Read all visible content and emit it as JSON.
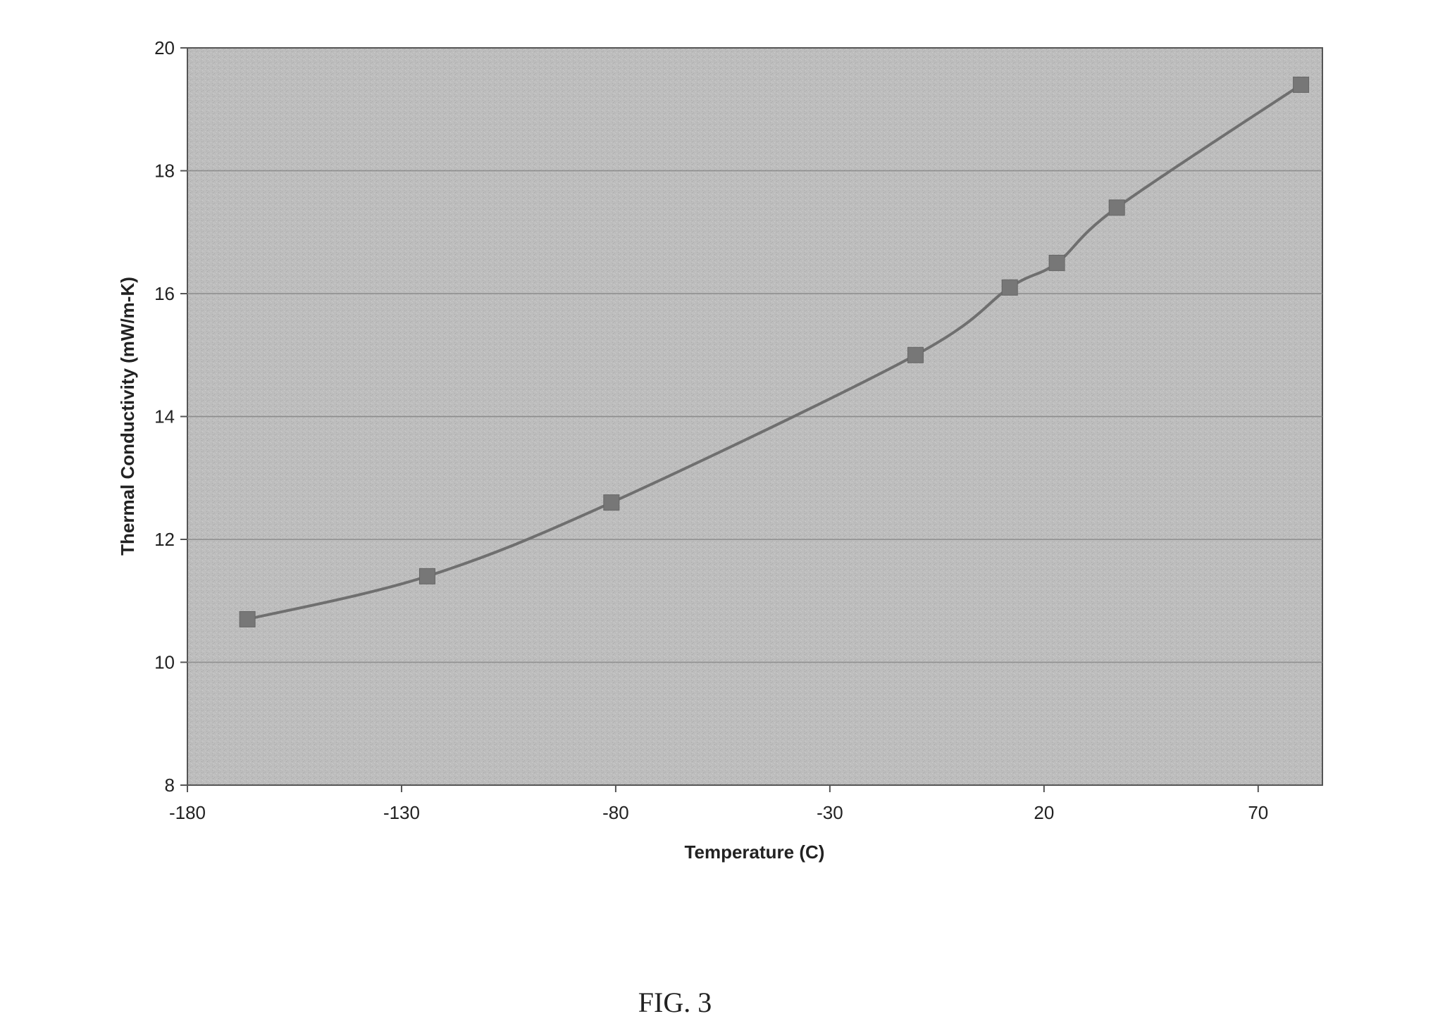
{
  "chart_data": {
    "type": "line",
    "title": "",
    "xlabel": "Temperature (C)",
    "ylabel": "Thermal Conductivity (mW/m-K)",
    "xlim": [
      -180,
      85
    ],
    "ylim": [
      8,
      20
    ],
    "x_ticks": [
      -180,
      -130,
      -80,
      -30,
      20,
      70
    ],
    "y_ticks": [
      8,
      10,
      12,
      14,
      16,
      18,
      20
    ],
    "grid": "horizontal",
    "legend": "none",
    "series": [
      {
        "x": [
          -166,
          -124,
          -81,
          -10,
          12,
          23,
          37,
          80
        ],
        "y": [
          10.7,
          11.4,
          12.6,
          15.0,
          16.1,
          16.5,
          17.4,
          19.4
        ]
      }
    ]
  },
  "figure": {
    "caption": "FIG. 3"
  },
  "colors": {
    "plot_background": "#bdbdbd",
    "line": "#6f6f6f",
    "marker": "#777777",
    "gridline": "#8c8c8c",
    "axis": "#555555",
    "text": "#222222"
  }
}
